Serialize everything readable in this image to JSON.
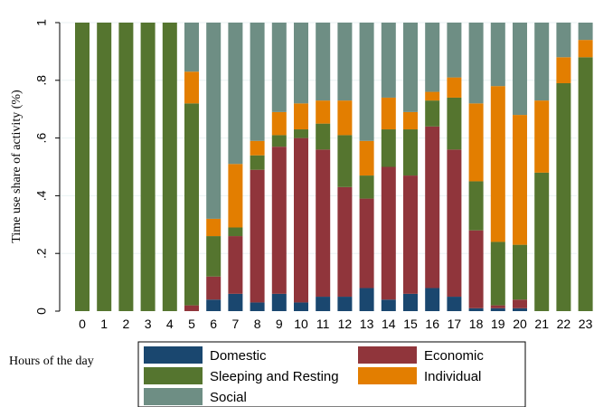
{
  "chart_data": {
    "type": "bar",
    "stacked": true,
    "title": "",
    "ylabel": "Time use share of activity (%)",
    "xlabel": "Hours of the day",
    "ylim": [
      0,
      1
    ],
    "yticks": [
      {
        "value": 0,
        "label": "0"
      },
      {
        "value": 0.2,
        "label": ".2"
      },
      {
        "value": 0.4,
        "label": ".4"
      },
      {
        "value": 0.6,
        "label": ".6"
      },
      {
        "value": 0.8,
        "label": ".8"
      },
      {
        "value": 1,
        "label": "1"
      }
    ],
    "grid": true,
    "legend_position": "bottom",
    "categories": [
      "0",
      "1",
      "2",
      "3",
      "4",
      "5",
      "6",
      "7",
      "8",
      "9",
      "10",
      "11",
      "12",
      "13",
      "14",
      "15",
      "16",
      "17",
      "18",
      "19",
      "20",
      "21",
      "22",
      "23"
    ],
    "series": [
      {
        "name": "Domestic",
        "color": "#1a476f",
        "values": [
          0,
          0,
          0,
          0,
          0,
          0,
          0.04,
          0.06,
          0.03,
          0.06,
          0.03,
          0.05,
          0.05,
          0.08,
          0.04,
          0.06,
          0.08,
          0.05,
          0.01,
          0.01,
          0.01,
          0,
          0,
          0
        ]
      },
      {
        "name": "Economic",
        "color": "#90353b",
        "values": [
          0,
          0,
          0,
          0,
          0,
          0.02,
          0.08,
          0.2,
          0.46,
          0.51,
          0.57,
          0.51,
          0.38,
          0.31,
          0.46,
          0.41,
          0.56,
          0.51,
          0.27,
          0.01,
          0.03,
          0,
          0,
          0
        ]
      },
      {
        "name": "Sleeping and Resting",
        "color": "#55752f",
        "values": [
          1,
          1,
          1,
          1,
          1,
          0.7,
          0.14,
          0.03,
          0.05,
          0.04,
          0.03,
          0.09,
          0.18,
          0.08,
          0.13,
          0.16,
          0.09,
          0.18,
          0.17,
          0.22,
          0.19,
          0.48,
          0.79,
          0.88
        ]
      },
      {
        "name": "Individual",
        "color": "#e37e00",
        "values": [
          0,
          0,
          0,
          0,
          0,
          0.11,
          0.06,
          0.22,
          0.05,
          0.08,
          0.09,
          0.08,
          0.12,
          0.12,
          0.11,
          0.06,
          0.03,
          0.07,
          0.27,
          0.54,
          0.45,
          0.25,
          0.09,
          0.06
        ]
      },
      {
        "name": "Social",
        "color": "#6e8e84",
        "values": [
          0,
          0,
          0,
          0,
          0,
          0.17,
          0.68,
          0.49,
          0.41,
          0.31,
          0.28,
          0.27,
          0.27,
          0.41,
          0.26,
          0.31,
          0.24,
          0.19,
          0.28,
          0.22,
          0.32,
          0.27,
          0.12,
          0.06
        ]
      }
    ]
  }
}
